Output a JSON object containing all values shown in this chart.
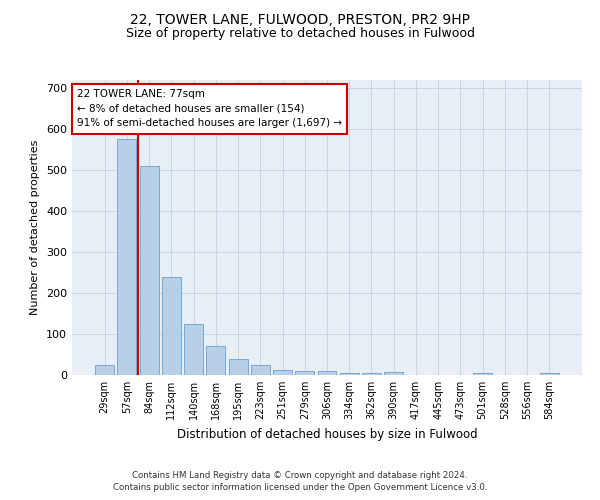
{
  "title_line1": "22, TOWER LANE, FULWOOD, PRESTON, PR2 9HP",
  "title_line2": "Size of property relative to detached houses in Fulwood",
  "xlabel": "Distribution of detached houses by size in Fulwood",
  "ylabel": "Number of detached properties",
  "categories": [
    "29sqm",
    "57sqm",
    "84sqm",
    "112sqm",
    "140sqm",
    "168sqm",
    "195sqm",
    "223sqm",
    "251sqm",
    "279sqm",
    "306sqm",
    "334sqm",
    "362sqm",
    "390sqm",
    "417sqm",
    "445sqm",
    "473sqm",
    "501sqm",
    "528sqm",
    "556sqm",
    "584sqm"
  ],
  "bar_values": [
    25,
    575,
    510,
    240,
    125,
    70,
    40,
    25,
    13,
    10,
    10,
    5,
    5,
    7,
    0,
    0,
    0,
    5,
    0,
    0,
    5
  ],
  "bar_color": "#b8cfe8",
  "bar_edgecolor": "#6a9fd0",
  "annotation_text": "22 TOWER LANE: 77sqm\n← 8% of detached houses are smaller (154)\n91% of semi-detached houses are larger (1,697) →",
  "annotation_box_color": "#ffffff",
  "annotation_box_edgecolor": "#cc0000",
  "red_line_color": "#cc0000",
  "footer_line1": "Contains HM Land Registry data © Crown copyright and database right 2024.",
  "footer_line2": "Contains public sector information licensed under the Open Government Licence v3.0.",
  "ylim": [
    0,
    720
  ],
  "yticks": [
    0,
    100,
    200,
    300,
    400,
    500,
    600,
    700
  ],
  "grid_color": "#c8d4e8",
  "bg_color": "#e8eef6",
  "title1_fontsize": 10,
  "title2_fontsize": 9,
  "bar_width": 0.85,
  "red_line_x": 1.5
}
